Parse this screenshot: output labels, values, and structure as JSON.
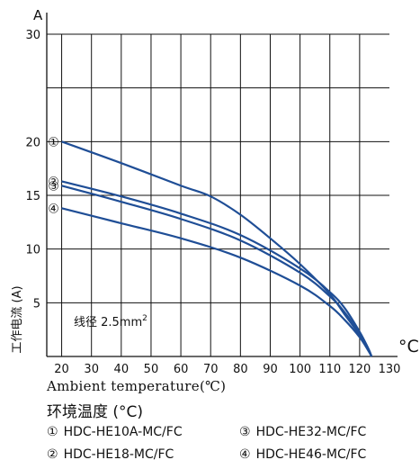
{
  "chart_data": {
    "type": "line",
    "title": "",
    "xlabel": "Ambient temperature(℃)",
    "xlabel_cn": "环境温度 (°C)",
    "ylabel": "工作电流 (A)",
    "y_unit": "A",
    "x_unit": "°C",
    "annotation": "线径 2.5mm",
    "annotation_sup": "2",
    "xlim": [
      15,
      130
    ],
    "ylim": [
      0,
      30
    ],
    "xticks": [
      20,
      30,
      40,
      50,
      60,
      70,
      80,
      90,
      100,
      110,
      120,
      130
    ],
    "yticks": [
      5,
      10,
      15,
      20,
      25,
      30
    ],
    "ytick_labels": [
      "5",
      "10",
      "15",
      "20",
      "",
      "30"
    ],
    "grid": true,
    "series": [
      {
        "name": "HDC-HE10A-MC/FC",
        "marker": "①",
        "x": [
          20,
          40,
          60,
          70,
          80,
          90,
          100,
          110,
          115,
          120,
          123,
          124
        ],
        "y": [
          20,
          18.0,
          15.9,
          14.9,
          13.2,
          11.0,
          8.6,
          5.8,
          3.9,
          2.0,
          0.6,
          0
        ]
      },
      {
        "name": "HDC-HE18-MC/FC",
        "marker": "②",
        "x": [
          20,
          40,
          60,
          80,
          100,
          110,
          115,
          120,
          123,
          124
        ],
        "y": [
          16.3,
          14.9,
          13.3,
          11.3,
          8.2,
          6.0,
          4.5,
          2.3,
          0.7,
          0
        ]
      },
      {
        "name": "HDC-HE32-MC/FC",
        "marker": "③",
        "x": [
          20,
          40,
          60,
          80,
          100,
          110,
          115,
          120,
          123,
          124
        ],
        "y": [
          15.9,
          14.4,
          12.8,
          10.8,
          7.8,
          5.6,
          4.1,
          2.1,
          0.6,
          0
        ]
      },
      {
        "name": "HDC-HE46-MC/FC",
        "marker": "④",
        "x": [
          20,
          40,
          60,
          80,
          100,
          110,
          115,
          120,
          123,
          124
        ],
        "y": [
          13.8,
          12.4,
          11.0,
          9.2,
          6.6,
          4.7,
          3.4,
          1.8,
          0.5,
          0
        ]
      }
    ],
    "line_color": "#1f4e96"
  },
  "legend_layout_note": ""
}
